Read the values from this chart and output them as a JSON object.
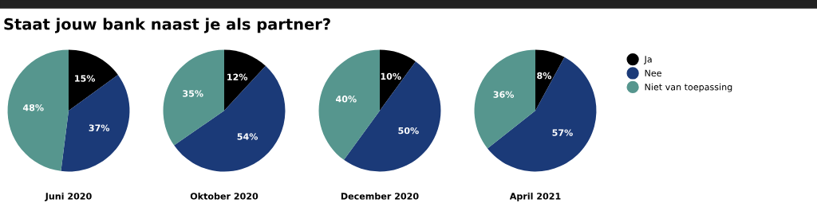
{
  "chart_data": [
    {
      "type": "pie",
      "title": "Staat jouw bank naast je als partner?",
      "xlabel": "Juni 2020",
      "categories": [
        "Ja",
        "Nee",
        "Niet van toepassing"
      ],
      "values": [
        15,
        37,
        48
      ],
      "colors": [
        "#000000",
        "#1b3a78",
        "#56968e"
      ],
      "value_labels": [
        "15%",
        "37%",
        "48%"
      ],
      "legend": "right"
    },
    {
      "type": "pie",
      "xlabel": "Oktober 2020",
      "categories": [
        null,
        null,
        null
      ],
      "values": [
        12,
        54,
        35
      ],
      "colors": [
        "#000000",
        "#1b3a78",
        "#56968e"
      ],
      "value_labels": [
        "12%",
        "54%",
        "35%"
      ]
    },
    {
      "type": "pie",
      "xlabel": "December 2020",
      "categories": [
        null,
        null,
        null
      ],
      "values": [
        10,
        50,
        40
      ],
      "colors": [
        "#000000",
        "#1b3a78",
        "#56968e"
      ],
      "value_labels": [
        "10%",
        "50%",
        "40%"
      ]
    },
    {
      "type": "pie",
      "xlabel": "April 2021",
      "categories": [
        null,
        null,
        null
      ],
      "values": [
        8,
        57,
        36
      ],
      "colors": [
        "#000000",
        "#1b3a78",
        "#56968e"
      ],
      "value_labels": [
        "8%",
        "57%",
        "36%"
      ]
    }
  ]
}
